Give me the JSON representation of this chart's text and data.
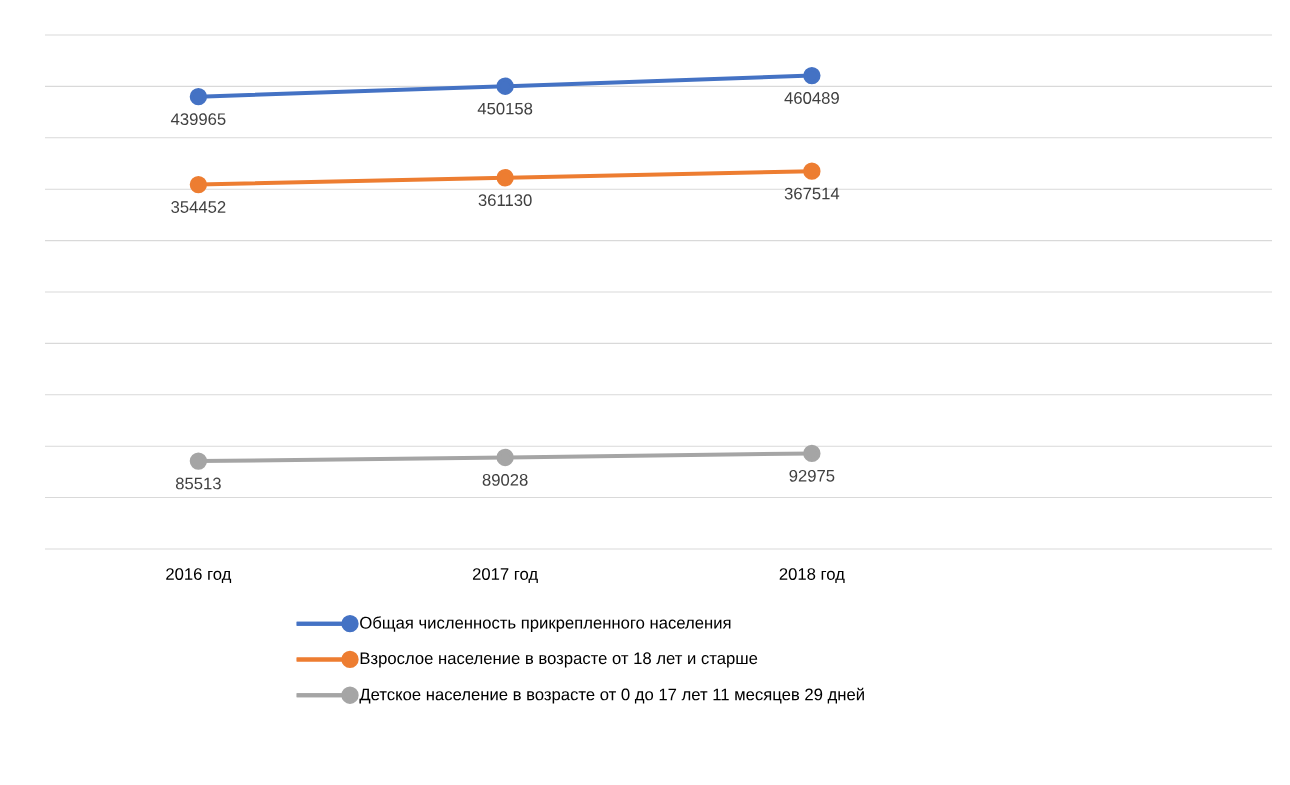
{
  "chart_data": {
    "type": "line",
    "categories": [
      "2016 год",
      "2017 год",
      "2018 год",
      null
    ],
    "series": [
      {
        "name": "Общая численность прикрепленного населения",
        "color": "#4472c4",
        "values": [
          439965,
          450158,
          460489,
          null
        ]
      },
      {
        "name": "Взрослое население в возрасте от 18 лет и старше",
        "color": "#ed7d31",
        "values": [
          354452,
          361130,
          367514,
          null
        ]
      },
      {
        "name": "Детское население в возрасте от 0 до 17 лет 11 месяцев 29 дней",
        "color": "#a5a5a5",
        "values": [
          85513,
          89028,
          92975,
          null
        ]
      }
    ],
    "ylim": [
      0,
      500000
    ],
    "yticks": [
      {
        "value": 0,
        "label": null
      },
      {
        "value": 50000,
        "label": null
      },
      {
        "value": 100000,
        "label": null
      },
      {
        "value": 150000,
        "label": null
      },
      {
        "value": 200000,
        "label": null
      },
      {
        "value": 250000,
        "label": null
      },
      {
        "value": 300000,
        "label": null
      },
      {
        "value": 350000,
        "label": null
      },
      {
        "value": 400000,
        "label": null
      },
      {
        "value": 450000,
        "label": null
      },
      {
        "value": 500000,
        "label": null
      }
    ],
    "tick_labels": "x",
    "grid": "y",
    "legend": "bottom",
    "marker": "circle",
    "line_style": "solid",
    "data_labels": true
  }
}
